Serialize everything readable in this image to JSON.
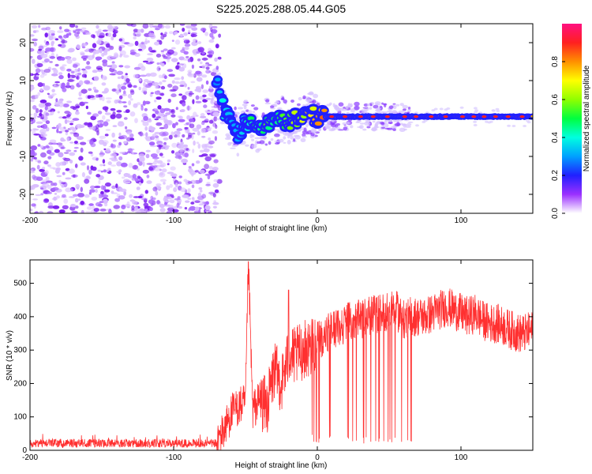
{
  "title": "S225.2025.288.05.44.G05",
  "chart_data": [
    {
      "type": "heatmap",
      "xlabel": "Height of straight line (km)",
      "ylabel": "Frequency (Hz)",
      "xlim": [
        -200,
        150
      ],
      "ylim": [
        -25,
        25
      ],
      "x_ticks": [
        -200,
        -100,
        0,
        100
      ],
      "y_ticks": [
        -20,
        -10,
        0,
        10,
        20
      ],
      "grid": false,
      "colorbar": {
        "label": "Normalized spectral amplitude",
        "range": [
          0.0,
          1.0
        ],
        "ticks": [
          0.0,
          0.2,
          0.4,
          0.6,
          0.8
        ]
      },
      "noise_region_x": [
        -200,
        -70
      ],
      "signal_track": {
        "x": [
          -70,
          -65,
          -60,
          -55,
          -50,
          -45,
          -40,
          -35,
          -30,
          -25,
          -20,
          -15,
          -10,
          -5,
          0,
          10,
          20,
          30,
          40,
          50,
          55,
          60,
          80,
          100,
          120,
          150
        ],
        "frequency": [
          10,
          2,
          -2,
          -4,
          -1,
          -2,
          -3,
          -1,
          -1,
          0,
          -1,
          0,
          0,
          1,
          0.5,
          0.5,
          0.5,
          0.5,
          0.5,
          0.5,
          0.5,
          0.5,
          0.5,
          0.5,
          0.5,
          0.5
        ],
        "amplitude": [
          0.3,
          0.4,
          0.35,
          0.35,
          0.4,
          0.5,
          0.5,
          0.55,
          0.5,
          0.55,
          0.6,
          0.65,
          0.7,
          0.75,
          0.8,
          0.85,
          0.9,
          0.9,
          0.9,
          0.92,
          0.85,
          0.9,
          0.9,
          0.9,
          0.9,
          0.9
        ]
      }
    },
    {
      "type": "line",
      "xlabel": "Height of straight line (km)",
      "ylabel": "SNR (10 * v/v)",
      "xlim": [
        -200,
        150
      ],
      "ylim": [
        0,
        570
      ],
      "x_ticks": [
        -200,
        -100,
        0,
        100
      ],
      "y_ticks": [
        0,
        100,
        200,
        300,
        400,
        500
      ],
      "grid": false,
      "series": [
        {
          "color": "#ff3030",
          "x": [
            -200,
            -180,
            -160,
            -140,
            -120,
            -100,
            -80,
            -70,
            -65,
            -60,
            -55,
            -50,
            -48,
            -45,
            -40,
            -35,
            -30,
            -25,
            -20,
            -15,
            -10,
            -5,
            0,
            5,
            10,
            15,
            20,
            25,
            30,
            35,
            40,
            45,
            50,
            55,
            60,
            65,
            70,
            75,
            80,
            85,
            90,
            95,
            100,
            105,
            110,
            115,
            120,
            125,
            130,
            135,
            140,
            145,
            150
          ],
          "values": [
            20,
            22,
            22,
            21,
            22,
            22,
            23,
            25,
            60,
            110,
            130,
            140,
            560,
            120,
            150,
            130,
            240,
            200,
            280,
            280,
            300,
            310,
            330,
            340,
            360,
            370,
            380,
            390,
            390,
            400,
            410,
            410,
            420,
            420,
            390,
            400,
            400,
            400,
            410,
            420,
            430,
            420,
            410,
            400,
            410,
            390,
            380,
            380,
            370,
            360,
            350,
            350,
            360
          ]
        }
      ],
      "spikes_x": [
        -48,
        -20,
        -10,
        -5,
        20,
        25,
        30,
        35,
        40,
        45,
        50,
        55,
        60,
        65,
        85,
        105
      ]
    }
  ]
}
